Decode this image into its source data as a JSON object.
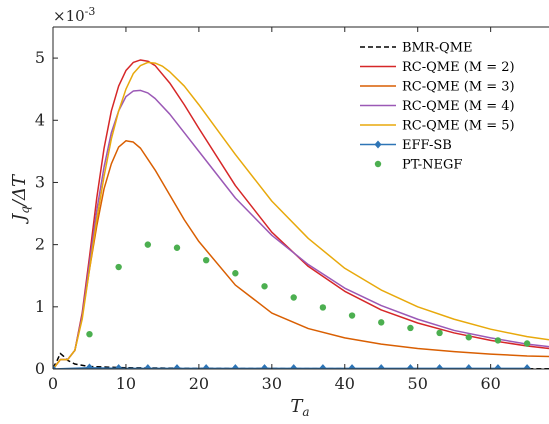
{
  "chart_data": {
    "type": "line",
    "title": "",
    "xlabel": "T_a",
    "ylabel": "J_q/ΔT",
    "y_multiplier_label": "×10",
    "y_multiplier_exp": "-3",
    "xlim": [
      0,
      68
    ],
    "ylim": [
      0,
      5.5
    ],
    "xticks": [
      0,
      10,
      20,
      30,
      40,
      50,
      60
    ],
    "yticks": [
      0,
      1,
      2,
      3,
      4,
      5
    ],
    "grid": false,
    "legend_position": "top-right",
    "series": [
      {
        "name": "BMR-QME",
        "style": "dashed",
        "color": "#000000",
        "x": [
          0,
          0.5,
          1,
          1.5,
          2,
          3,
          5,
          10,
          20,
          40,
          68
        ],
        "y": [
          0.02,
          0.12,
          0.25,
          0.2,
          0.14,
          0.08,
          0.04,
          0.02,
          0.01,
          0.005,
          0.003
        ]
      },
      {
        "name": "RC-QME (M = 2)",
        "style": "solid",
        "color": "#d62728",
        "x": [
          0,
          1,
          2,
          3,
          4,
          5,
          6,
          7,
          8,
          9,
          10,
          11,
          12,
          13,
          14,
          16,
          18,
          20,
          25,
          30,
          35,
          40,
          45,
          50,
          55,
          60,
          65,
          68
        ],
        "y": [
          0,
          0.15,
          0.15,
          0.3,
          0.9,
          1.8,
          2.75,
          3.55,
          4.15,
          4.55,
          4.8,
          4.93,
          4.97,
          4.95,
          4.88,
          4.6,
          4.25,
          3.87,
          2.95,
          2.2,
          1.65,
          1.25,
          0.95,
          0.74,
          0.58,
          0.46,
          0.37,
          0.33
        ]
      },
      {
        "name": "RC-QME (M = 3)",
        "style": "solid",
        "color": "#d95f02",
        "x": [
          0,
          1,
          2,
          3,
          4,
          5,
          6,
          7,
          8,
          9,
          10,
          11,
          12,
          14,
          16,
          18,
          20,
          25,
          30,
          35,
          40,
          45,
          50,
          55,
          60,
          65,
          68
        ],
        "y": [
          0,
          0.15,
          0.15,
          0.3,
          0.85,
          1.6,
          2.3,
          2.9,
          3.3,
          3.57,
          3.67,
          3.65,
          3.55,
          3.2,
          2.8,
          2.4,
          2.05,
          1.35,
          0.9,
          0.65,
          0.5,
          0.4,
          0.33,
          0.28,
          0.24,
          0.21,
          0.2
        ]
      },
      {
        "name": "RC-QME (M = 4)",
        "style": "solid",
        "color": "#9b59b6",
        "x": [
          0,
          1,
          2,
          3,
          4,
          5,
          6,
          7,
          8,
          9,
          10,
          11,
          12,
          13,
          14,
          16,
          18,
          20,
          25,
          30,
          35,
          40,
          45,
          50,
          55,
          60,
          65,
          68
        ],
        "y": [
          0,
          0.15,
          0.15,
          0.3,
          0.85,
          1.7,
          2.55,
          3.25,
          3.8,
          4.15,
          4.38,
          4.47,
          4.48,
          4.44,
          4.35,
          4.1,
          3.8,
          3.5,
          2.75,
          2.15,
          1.68,
          1.3,
          1.02,
          0.8,
          0.62,
          0.5,
          0.4,
          0.36
        ]
      },
      {
        "name": "RC-QME (M = 5)",
        "style": "solid",
        "color": "#e8a90c",
        "x": [
          0,
          1,
          2,
          3,
          4,
          5,
          6,
          7,
          8,
          9,
          10,
          11,
          12,
          13,
          14,
          15,
          16,
          18,
          20,
          25,
          30,
          35,
          40,
          45,
          50,
          55,
          60,
          65,
          68
        ],
        "y": [
          0,
          0.15,
          0.15,
          0.3,
          0.8,
          1.6,
          2.4,
          3.1,
          3.7,
          4.15,
          4.5,
          4.75,
          4.88,
          4.93,
          4.92,
          4.87,
          4.78,
          4.55,
          4.25,
          3.45,
          2.7,
          2.1,
          1.62,
          1.27,
          1.0,
          0.8,
          0.64,
          0.52,
          0.47
        ]
      },
      {
        "name": "EFF-SB",
        "style": "solid-diamond",
        "color": "#2e75b6",
        "x": [
          0,
          5,
          9,
          13,
          17,
          21,
          25,
          29,
          33,
          37,
          41,
          45,
          49,
          53,
          57,
          61,
          65
        ],
        "y": [
          0,
          0.02,
          0.01,
          0.01,
          0.01,
          0.01,
          0.01,
          0.01,
          0.01,
          0.01,
          0.01,
          0.01,
          0.01,
          0.01,
          0.01,
          0.01,
          0.01
        ]
      },
      {
        "name": "PT-NEGF",
        "style": "dots",
        "color": "#4caf50",
        "x": [
          5,
          9,
          13,
          17,
          21,
          25,
          29,
          33,
          37,
          41,
          45,
          49,
          53,
          57,
          61,
          65
        ],
        "y": [
          0.56,
          1.64,
          2.0,
          1.95,
          1.75,
          1.54,
          1.33,
          1.15,
          0.99,
          0.86,
          0.75,
          0.66,
          0.58,
          0.51,
          0.46,
          0.41
        ]
      }
    ]
  }
}
